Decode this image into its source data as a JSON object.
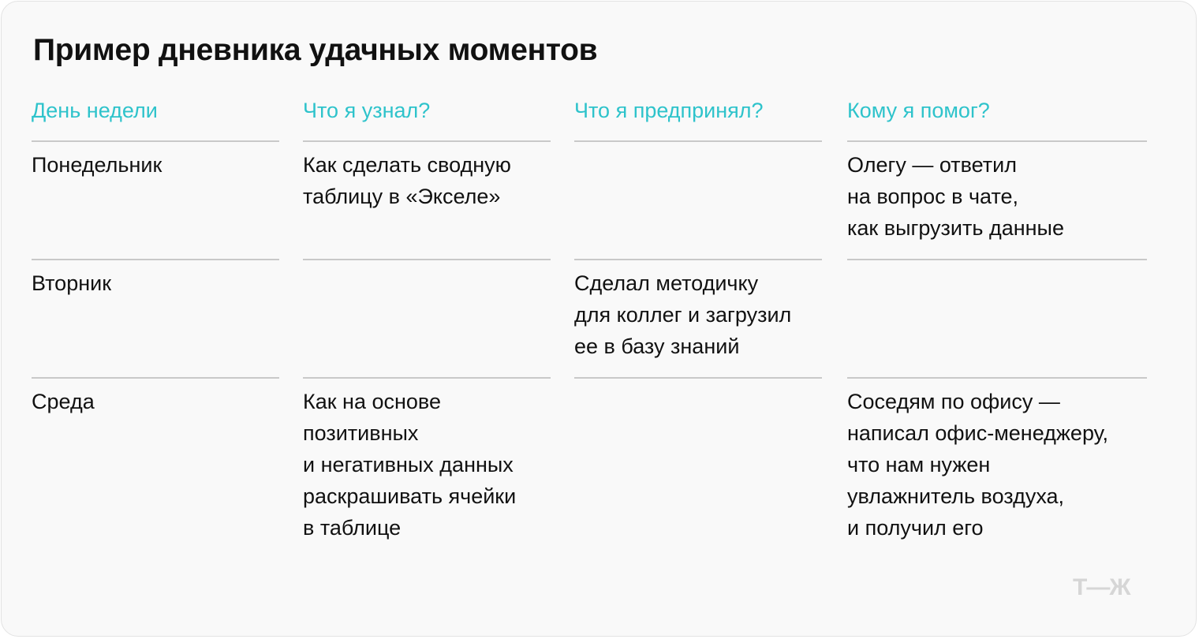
{
  "title": "Пример дневника удачных моментов",
  "colors": {
    "accent": "#2ec3cb",
    "background": "#f9f9f9",
    "divider": "#c9c9c9"
  },
  "columns": [
    {
      "header": "День недели",
      "cells": [
        "Понедельник",
        "Вторник",
        "Среда"
      ]
    },
    {
      "header": "Что я узнал?",
      "cells": [
        "Как сделать сводную\nтаблицу в «Экселе»",
        "",
        "Как на основе\nпозитивных\nи негативных данных\nраскрашивать ячейки\nв таблице"
      ]
    },
    {
      "header": "Что я предпринял?",
      "cells": [
        "",
        "Сделал методичку\nдля коллег и загрузил\nее в базу знаний",
        ""
      ]
    },
    {
      "header": "Кому я помог?",
      "cells": [
        "Олегу — ответил\nна вопрос в чате,\nкак выгрузить данные",
        "",
        "Соседям по офису —\nнаписал офис-менеджеру,\nчто нам нужен\nувлажнитель воздуха,\nи получил его"
      ]
    }
  ],
  "logo": "Т—Ж"
}
